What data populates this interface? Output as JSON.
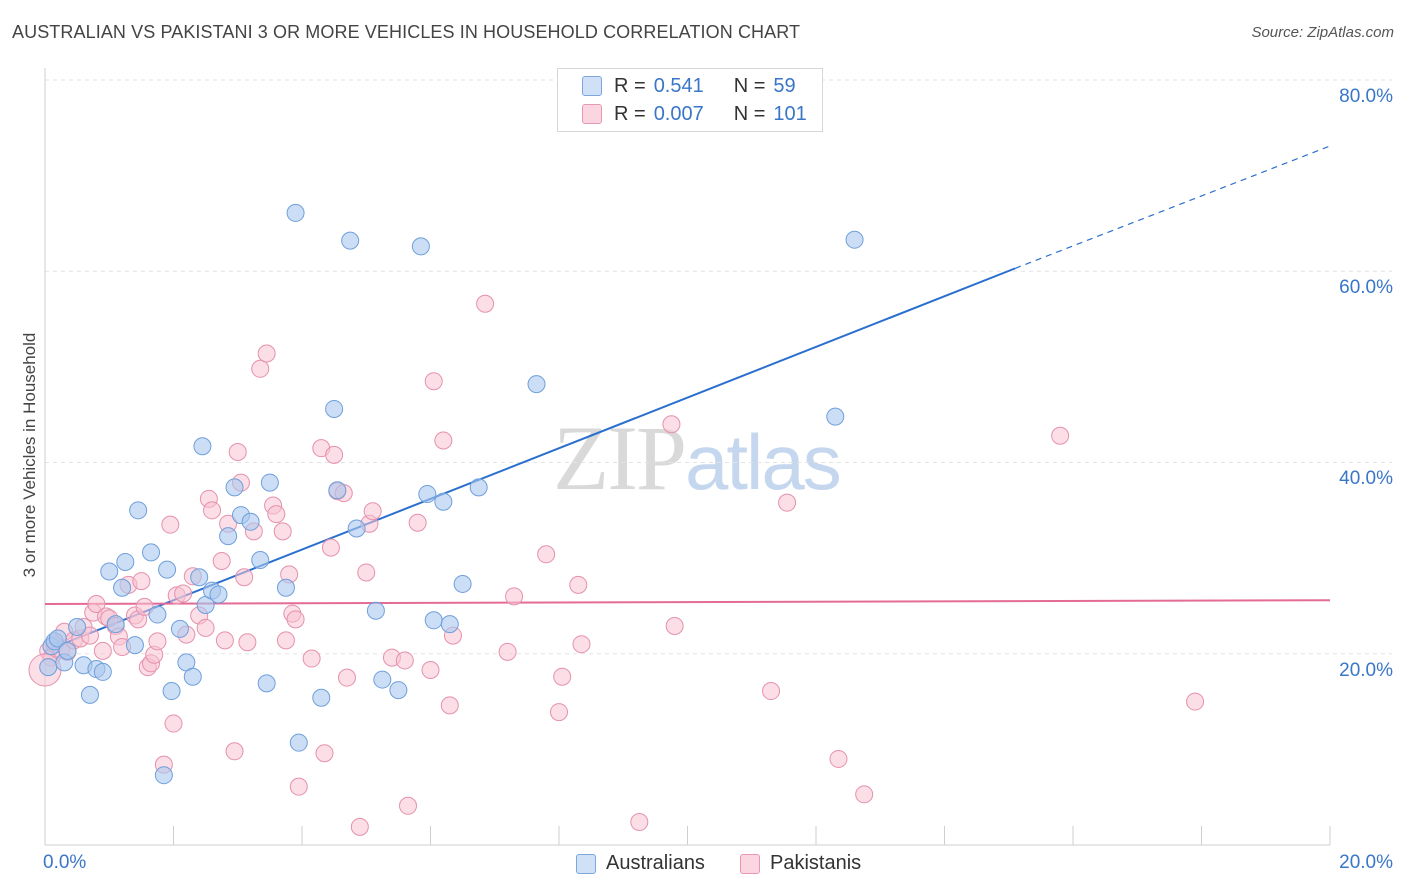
{
  "title": "AUSTRALIAN VS PAKISTANI 3 OR MORE VEHICLES IN HOUSEHOLD CORRELATION CHART",
  "source": "Source: ZipAtlas.com",
  "watermark": {
    "zip": "ZIP",
    "atlas": "atlas"
  },
  "legend": {
    "rows": [
      {
        "r_label": "R =",
        "r_value": "0.541",
        "n_label": "N =",
        "n_value": "59",
        "color": "#a9c8f0"
      },
      {
        "r_label": "R =",
        "r_value": "0.007",
        "n_label": "N =",
        "n_value": "101",
        "color": "#f7b8cb"
      }
    ]
  },
  "colors": {
    "blue_fill": "#aac8ef",
    "blue_stroke": "#6f9fdb",
    "blue_line": "#2b6fce",
    "pink_fill": "#f8c2d2",
    "pink_stroke": "#e591ad",
    "pink_line": "#e46b95",
    "grid": "#e3e3e3",
    "tick_text": "#3a76c8"
  },
  "chart_data": {
    "type": "scatter",
    "title": "AUSTRALIAN VS PAKISTANI 3 OR MORE VEHICLES IN HOUSEHOLD CORRELATION CHART",
    "xlabel": "",
    "ylabel": "3 or more Vehicles in Household",
    "xlim": [
      0,
      20
    ],
    "ylim": [
      0,
      80
    ],
    "x_tick_labels": [
      "0.0%",
      "20.0%"
    ],
    "y_tick_labels": [
      "20.0%",
      "40.0%",
      "60.0%",
      "80.0%"
    ],
    "y_ticks": [
      20,
      40,
      60,
      80
    ],
    "grid": true,
    "legend_position": "top-center",
    "series": [
      {
        "name": "Australians",
        "regression": {
          "x0": 0,
          "y0": 20.3,
          "x1": 15.1,
          "y1": 60.3,
          "x_dash_end": 20,
          "y_dash_end": 73.1
        },
        "points": [
          [
            0.05,
            18.6
          ],
          [
            0.1,
            20.8
          ],
          [
            0.15,
            21.3
          ],
          [
            0.2,
            21.6
          ],
          [
            0.3,
            19.1
          ],
          [
            0.35,
            20.3
          ],
          [
            0.5,
            22.8
          ],
          [
            0.6,
            18.8
          ],
          [
            0.7,
            15.7
          ],
          [
            0.8,
            18.4
          ],
          [
            0.9,
            18.1
          ],
          [
            1.0,
            28.6
          ],
          [
            1.1,
            23.1
          ],
          [
            1.2,
            26.9
          ],
          [
            1.25,
            29.6
          ],
          [
            1.4,
            20.9
          ],
          [
            1.45,
            35.0
          ],
          [
            1.65,
            30.6
          ],
          [
            1.75,
            24.1
          ],
          [
            1.9,
            28.8
          ],
          [
            1.97,
            16.1
          ],
          [
            2.1,
            22.6
          ],
          [
            2.2,
            19.1
          ],
          [
            2.3,
            17.6
          ],
          [
            2.4,
            28.0
          ],
          [
            2.45,
            41.7
          ],
          [
            2.5,
            25.1
          ],
          [
            2.6,
            26.6
          ],
          [
            2.7,
            26.2
          ],
          [
            2.85,
            32.3
          ],
          [
            2.95,
            37.4
          ],
          [
            3.05,
            34.5
          ],
          [
            3.2,
            33.8
          ],
          [
            3.35,
            29.8
          ],
          [
            3.45,
            16.9
          ],
          [
            3.5,
            37.9
          ],
          [
            3.75,
            26.9
          ],
          [
            3.9,
            66.1
          ],
          [
            3.95,
            10.7
          ],
          [
            4.3,
            15.4
          ],
          [
            4.5,
            45.6
          ],
          [
            4.55,
            37.1
          ],
          [
            4.75,
            63.2
          ],
          [
            4.85,
            33.1
          ],
          [
            5.15,
            24.5
          ],
          [
            5.25,
            17.3
          ],
          [
            5.5,
            16.2
          ],
          [
            5.85,
            62.6
          ],
          [
            5.95,
            36.7
          ],
          [
            6.05,
            23.5
          ],
          [
            6.2,
            35.9
          ],
          [
            6.3,
            23.1
          ],
          [
            6.5,
            27.3
          ],
          [
            6.75,
            37.4
          ],
          [
            7.65,
            48.2
          ],
          [
            12.3,
            44.8
          ],
          [
            12.6,
            63.3
          ],
          [
            1.85,
            7.3
          ]
        ]
      },
      {
        "name": "Pakistanis",
        "regression": {
          "x0": 0,
          "y0": 25.2,
          "x1": 20,
          "y1": 25.6
        },
        "points": [
          [
            0.05,
            20.3
          ],
          [
            0.1,
            19.6
          ],
          [
            0.15,
            21.0
          ],
          [
            0.25,
            20.4
          ],
          [
            0.3,
            22.3
          ],
          [
            0.35,
            20.2
          ],
          [
            0.45,
            21.4
          ],
          [
            0.55,
            21.6
          ],
          [
            0.6,
            22.8
          ],
          [
            0.7,
            21.9
          ],
          [
            0.75,
            24.3
          ],
          [
            0.8,
            25.2
          ],
          [
            0.9,
            20.3
          ],
          [
            0.95,
            23.9
          ],
          [
            1.0,
            23.7
          ],
          [
            1.1,
            22.9
          ],
          [
            1.15,
            21.8
          ],
          [
            1.2,
            20.7
          ],
          [
            1.3,
            27.2
          ],
          [
            1.4,
            24.0
          ],
          [
            1.45,
            23.6
          ],
          [
            1.5,
            27.6
          ],
          [
            1.55,
            24.9
          ],
          [
            1.6,
            18.6
          ],
          [
            1.65,
            19.0
          ],
          [
            1.7,
            19.9
          ],
          [
            1.75,
            21.3
          ],
          [
            1.85,
            8.4
          ],
          [
            1.95,
            33.5
          ],
          [
            2.0,
            12.7
          ],
          [
            2.05,
            26.1
          ],
          [
            2.15,
            26.3
          ],
          [
            2.2,
            22.0
          ],
          [
            2.3,
            28.1
          ],
          [
            2.4,
            24.0
          ],
          [
            2.5,
            22.7
          ],
          [
            2.55,
            36.2
          ],
          [
            2.6,
            35.0
          ],
          [
            2.75,
            29.7
          ],
          [
            2.8,
            21.4
          ],
          [
            2.85,
            33.6
          ],
          [
            2.95,
            9.8
          ],
          [
            3.0,
            41.1
          ],
          [
            3.05,
            37.9
          ],
          [
            3.1,
            28.0
          ],
          [
            3.15,
            21.2
          ],
          [
            3.25,
            32.8
          ],
          [
            3.35,
            49.8
          ],
          [
            3.45,
            51.4
          ],
          [
            3.55,
            35.5
          ],
          [
            3.6,
            34.6
          ],
          [
            3.7,
            32.8
          ],
          [
            3.75,
            21.4
          ],
          [
            3.8,
            28.3
          ],
          [
            3.85,
            24.2
          ],
          [
            3.9,
            23.6
          ],
          [
            3.95,
            6.1
          ],
          [
            4.15,
            19.5
          ],
          [
            4.3,
            41.5
          ],
          [
            4.35,
            9.6
          ],
          [
            4.45,
            31.1
          ],
          [
            4.5,
            40.8
          ],
          [
            4.55,
            37.0
          ],
          [
            4.65,
            36.8
          ],
          [
            4.7,
            17.5
          ],
          [
            4.9,
            1.9
          ],
          [
            5.0,
            28.5
          ],
          [
            5.05,
            33.6
          ],
          [
            5.1,
            34.9
          ],
          [
            5.4,
            19.6
          ],
          [
            5.6,
            19.3
          ],
          [
            5.65,
            4.1
          ],
          [
            5.8,
            33.7
          ],
          [
            6.0,
            18.3
          ],
          [
            6.05,
            48.5
          ],
          [
            6.2,
            42.3
          ],
          [
            6.3,
            14.6
          ],
          [
            6.35,
            21.9
          ],
          [
            6.85,
            56.6
          ],
          [
            7.2,
            20.2
          ],
          [
            7.3,
            26.0
          ],
          [
            7.8,
            30.4
          ],
          [
            8.0,
            13.9
          ],
          [
            8.05,
            17.6
          ],
          [
            8.3,
            27.2
          ],
          [
            8.35,
            21.0
          ],
          [
            9.25,
            2.4
          ],
          [
            9.75,
            44.0
          ],
          [
            9.8,
            22.9
          ],
          [
            11.3,
            16.1
          ],
          [
            11.55,
            35.8
          ],
          [
            12.35,
            9.0
          ],
          [
            12.75,
            5.3
          ],
          [
            15.8,
            42.8
          ],
          [
            17.9,
            15.0
          ],
          [
            0.0,
            18.3
          ]
        ]
      }
    ]
  },
  "bottom_legend": [
    {
      "label": "Australians",
      "color": "#a9c8f0"
    },
    {
      "label": "Pakistanis",
      "color": "#f7b8cb"
    }
  ]
}
